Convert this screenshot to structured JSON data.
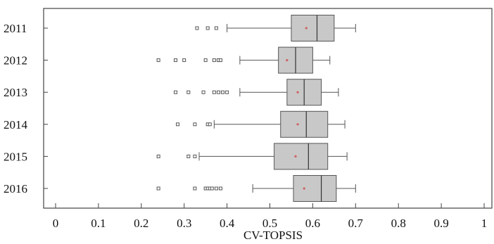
{
  "chart_data": {
    "type": "boxplot",
    "orientation": "horizontal",
    "xlabel": "CV-TOPSIS",
    "ylabel": "",
    "title": "",
    "xlim": [
      -0.03,
      1.03
    ],
    "xticks": [
      0,
      0.1,
      0.2,
      0.3,
      0.4,
      0.5,
      0.6,
      0.7,
      0.8,
      0.9,
      1
    ],
    "tick_labels": [
      "0",
      "0.1",
      "0.2",
      "0.3",
      "0.4",
      "0.5",
      "0.6",
      "0.7",
      "0.8",
      "0.9",
      "1"
    ],
    "grid": false,
    "colors": {
      "box_fill": "#c8c8c8",
      "stroke": "#555555",
      "mean_marker": "#d06060",
      "outlier": "#555555"
    },
    "categories": [
      "2011",
      "2012",
      "2013",
      "2014",
      "2015",
      "2016"
    ],
    "boxes": [
      {
        "category": "2011",
        "whisker_low": 0.4,
        "q1": 0.55,
        "median": 0.61,
        "q3": 0.65,
        "whisker_high": 0.7,
        "mean": 0.585,
        "outliers": [
          0.33,
          0.355,
          0.375
        ]
      },
      {
        "category": "2012",
        "whisker_low": 0.43,
        "q1": 0.52,
        "median": 0.56,
        "q3": 0.6,
        "whisker_high": 0.64,
        "mean": 0.54,
        "outliers": [
          0.24,
          0.28,
          0.3,
          0.35,
          0.37,
          0.38,
          0.385
        ]
      },
      {
        "category": "2013",
        "whisker_low": 0.43,
        "q1": 0.54,
        "median": 0.58,
        "q3": 0.62,
        "whisker_high": 0.66,
        "mean": 0.565,
        "outliers": [
          0.28,
          0.31,
          0.345,
          0.37,
          0.38,
          0.39,
          0.4
        ]
      },
      {
        "category": "2014",
        "whisker_low": 0.37,
        "q1": 0.525,
        "median": 0.585,
        "q3": 0.635,
        "whisker_high": 0.675,
        "mean": 0.565,
        "outliers": [
          0.285,
          0.325,
          0.355,
          0.36
        ]
      },
      {
        "category": "2015",
        "whisker_low": 0.335,
        "q1": 0.51,
        "median": 0.59,
        "q3": 0.635,
        "whisker_high": 0.68,
        "mean": 0.56,
        "outliers": [
          0.24,
          0.31,
          0.325
        ]
      },
      {
        "category": "2016",
        "whisker_low": 0.46,
        "q1": 0.555,
        "median": 0.62,
        "q3": 0.655,
        "whisker_high": 0.7,
        "mean": 0.58,
        "outliers": [
          0.24,
          0.325,
          0.35,
          0.355,
          0.36,
          0.365,
          0.375,
          0.385
        ]
      }
    ]
  }
}
